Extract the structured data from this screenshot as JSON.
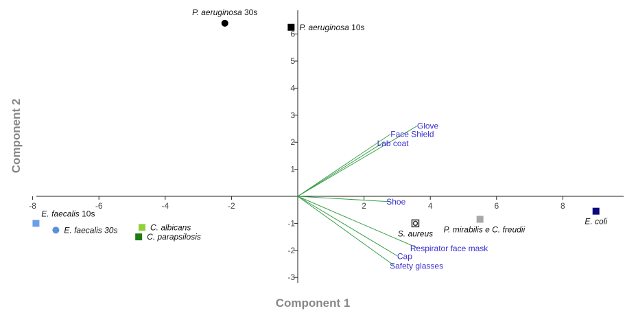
{
  "chart_data": {
    "type": "scatter",
    "title": "",
    "xlabel": "Component 1",
    "ylabel": "Component 2",
    "xlim": [
      -8,
      10
    ],
    "ylim": [
      -3,
      6.5
    ],
    "grid": false,
    "x_ticks": [
      "-8",
      "-6",
      "-4",
      "-2",
      "2",
      "4",
      "6",
      "8"
    ],
    "y_ticks": [
      "-3",
      "-2",
      "-1",
      "1",
      "2",
      "3",
      "4",
      "5",
      "6"
    ],
    "points": [
      {
        "name": "E. faecalis 10s",
        "label_parts": [
          {
            "text": "E. faecalis",
            "italic": true
          },
          {
            "text": " 10s",
            "italic": false
          }
        ],
        "x": -7.9,
        "y": -1.0,
        "marker": "square",
        "color": "#6aa0e8",
        "label_pos": "above-right"
      },
      {
        "name": "E. faecalis 30s",
        "label_parts": [
          {
            "text": "E. faecalis 30s",
            "italic": true
          }
        ],
        "x": -7.3,
        "y": -1.25,
        "marker": "circle",
        "color": "#5b8fdc",
        "label_pos": "right"
      },
      {
        "name": "C. albicans",
        "label_parts": [
          {
            "text": "C. albicans",
            "italic": true
          }
        ],
        "x": -4.7,
        "y": -1.15,
        "marker": "square",
        "color": "#8fd13a",
        "label_pos": "right"
      },
      {
        "name": "C. parapsilosis",
        "label_parts": [
          {
            "text": "C. parapsilosis",
            "italic": true
          }
        ],
        "x": -4.8,
        "y": -1.5,
        "marker": "square",
        "color": "#1e7a12",
        "label_pos": "right"
      },
      {
        "name": "P. aeruginosa 30s",
        "label_parts": [
          {
            "text": "P. aeruginosa",
            "italic": true
          },
          {
            "text": " 30s",
            "italic": false
          }
        ],
        "x": -2.2,
        "y": 6.4,
        "marker": "circle",
        "color": "#000000",
        "label_pos": "above"
      },
      {
        "name": "P. aeruginosa 10s",
        "label_parts": [
          {
            "text": "P. aeruginosa",
            "italic": true
          },
          {
            "text": " 10s",
            "italic": false
          }
        ],
        "x": -0.2,
        "y": 6.25,
        "marker": "square",
        "color": "#000000",
        "label_pos": "right"
      },
      {
        "name": "S. aureus",
        "label_parts": [
          {
            "text": "S. aureus",
            "italic": true
          }
        ],
        "x": 3.55,
        "y": -1.0,
        "marker": "hollow-circle",
        "color": "#333333",
        "label_pos": "below"
      },
      {
        "name": "P. mirabilis e C. freudii",
        "label_parts": [
          {
            "text": "P. mirabilis e C. freudii",
            "italic": true
          }
        ],
        "x": 5.5,
        "y": -0.85,
        "marker": "square",
        "color": "#a8a8a8",
        "label_pos": "below"
      },
      {
        "name": "E. coli",
        "label_parts": [
          {
            "text": "E. coli",
            "italic": true
          }
        ],
        "x": 9.0,
        "y": -0.55,
        "marker": "square",
        "color": "#0a0a80",
        "label_pos": "below"
      }
    ],
    "loadings": [
      {
        "name": "Glove",
        "x": 3.6,
        "y": 2.6
      },
      {
        "name": "Face Shield",
        "x": 2.8,
        "y": 2.3
      },
      {
        "name": "Lab coat",
        "x": 2.6,
        "y": 2.0
      },
      {
        "name": "Shoe",
        "x": 2.8,
        "y": -0.2
      },
      {
        "name": "Respirator face mask",
        "x": 3.6,
        "y": -1.9
      },
      {
        "name": "Cap",
        "x": 3.0,
        "y": -2.2
      },
      {
        "name": "Safety glasses",
        "x": 2.9,
        "y": -2.55
      }
    ],
    "loading_color": "#3aa04a",
    "loading_label_color": "#3a2fd0"
  }
}
